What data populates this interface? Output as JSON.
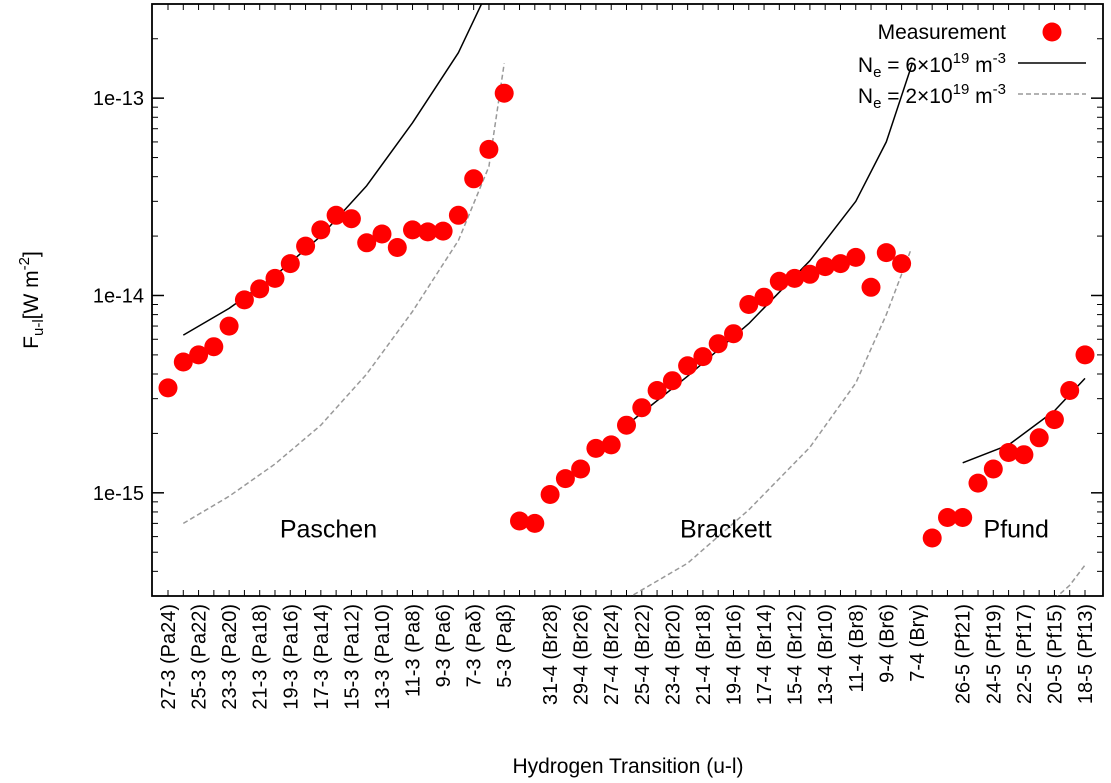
{
  "chart_data": {
    "type": "scatter",
    "xlabel": "Hydrogen Transition (u-l)",
    "ylabel": "F",
    "ylabel_sub": "u-l",
    "ylabel_unit": "[W m",
    "ylabel_unit_sup": "-2",
    "ylabel_unit_end": "]",
    "yscale": "log",
    "ylim": [
      3e-16,
      3e-13
    ],
    "yticks": [
      {
        "value": 1e-13,
        "label": "1e-13"
      },
      {
        "value": 1e-14,
        "label": "1e-14"
      },
      {
        "value": 1e-15,
        "label": "1e-15"
      }
    ],
    "categories": [
      "27-3 (Pa24)",
      "",
      "25-3 (Pa22)",
      "",
      "23-3 (Pa20)",
      "",
      "21-3 (Pa18)",
      "",
      "19-3 (Pa16)",
      "",
      "17-3 (Pa14)",
      "",
      "15-3 (Pa12)",
      "",
      "13-3 (Pa10)",
      "",
      "11-3 (Pa8)",
      "",
      "9-3 (Pa6)",
      "",
      "7-3 (Paδ)",
      "",
      "5-3 (Paβ)",
      "",
      "",
      "31-4 (Br28)",
      "",
      "29-4 (Br26)",
      "",
      "27-4 (Br24)",
      "",
      "25-4 (Br22)",
      "",
      "23-4 (Br20)",
      "",
      "21-4 (Br18)",
      "",
      "19-4 (Br16)",
      "",
      "17-4 (Br14)",
      "",
      "15-4 (Br12)",
      "",
      "13-4 (Br10)",
      "",
      "11-4 (Br8)",
      "",
      "9-4 (Br6)",
      "",
      "7-4 (Brγ)",
      "",
      "",
      "26-5 (Pf21)",
      "",
      "24-5 (Pf19)",
      "",
      "22-5 (Pf17)",
      "",
      "20-5 (Pf15)",
      "",
      "18-5 (Pf13)"
    ],
    "series": [
      {
        "name": "Measurement",
        "color": "#ff0000",
        "points": [
          [
            0,
            3.4e-15
          ],
          [
            1,
            4.6e-15
          ],
          [
            2,
            5e-15
          ],
          [
            3,
            5.5e-15
          ],
          [
            4,
            7e-15
          ],
          [
            5,
            9.5e-15
          ],
          [
            6,
            1.08e-14
          ],
          [
            7,
            1.22e-14
          ],
          [
            8,
            1.45e-14
          ],
          [
            9,
            1.78e-14
          ],
          [
            10,
            2.15e-14
          ],
          [
            11,
            2.55e-14
          ],
          [
            12,
            2.45e-14
          ],
          [
            13,
            1.85e-14
          ],
          [
            14,
            2.05e-14
          ],
          [
            15,
            1.75e-14
          ],
          [
            16,
            2.15e-14
          ],
          [
            17,
            2.1e-14
          ],
          [
            18,
            2.12e-14
          ],
          [
            19,
            2.55e-14
          ],
          [
            20,
            3.9e-14
          ],
          [
            21,
            5.5e-14
          ],
          [
            22,
            1.06e-13
          ],
          [
            23,
            7.2e-16
          ],
          [
            24,
            7e-16
          ],
          [
            25,
            9.8e-16
          ],
          [
            26,
            1.18e-15
          ],
          [
            27,
            1.32e-15
          ],
          [
            28,
            1.68e-15
          ],
          [
            29,
            1.75e-15
          ],
          [
            30,
            2.2e-15
          ],
          [
            31,
            2.7e-15
          ],
          [
            32,
            3.3e-15
          ],
          [
            33,
            3.7e-15
          ],
          [
            34,
            4.4e-15
          ],
          [
            35,
            4.9e-15
          ],
          [
            36,
            5.7e-15
          ],
          [
            37,
            6.4e-15
          ],
          [
            38,
            9e-15
          ],
          [
            39,
            9.8e-15
          ],
          [
            40,
            1.18e-14
          ],
          [
            41,
            1.22e-14
          ],
          [
            42,
            1.28e-14
          ],
          [
            43,
            1.4e-14
          ],
          [
            44,
            1.45e-14
          ],
          [
            45,
            1.56e-14
          ],
          [
            46,
            1.1e-14
          ],
          [
            47,
            1.65e-14
          ],
          [
            48,
            1.45e-14
          ],
          [
            50,
            5.9e-16
          ],
          [
            51,
            7.5e-16
          ],
          [
            52,
            7.5e-16
          ],
          [
            53,
            1.12e-15
          ],
          [
            54,
            1.32e-15
          ],
          [
            55,
            1.6e-15
          ],
          [
            56,
            1.56e-15
          ],
          [
            57,
            1.9e-15
          ],
          [
            58,
            2.35e-15
          ],
          [
            59,
            3.3e-15
          ],
          [
            60,
            5e-15
          ]
        ]
      },
      {
        "name": "N",
        "name_sub": "e",
        "name_mid": " = 6×10",
        "name_sup": "19",
        "name_end": " m",
        "name_sup2": "-3",
        "color": "#000000",
        "style": "solid",
        "curves": [
          [
            [
              1,
              6.3e-15
            ],
            [
              4,
              8.6e-15
            ],
            [
              7,
              1.26e-14
            ],
            [
              10,
              2e-14
            ],
            [
              13,
              3.6e-14
            ],
            [
              16,
              7.5e-14
            ],
            [
              19,
              1.7e-13
            ],
            [
              21,
              3.6e-13
            ]
          ],
          [
            [
              30,
              2.2e-15
            ],
            [
              34,
              3.9e-15
            ],
            [
              38,
              7.2e-15
            ],
            [
              42,
              1.5e-14
            ],
            [
              45,
              3e-14
            ],
            [
              47,
              6e-14
            ],
            [
              48.7,
              1.5e-13
            ]
          ],
          [
            [
              52,
              1.42e-15
            ],
            [
              55,
              1.75e-15
            ],
            [
              58,
              2.6e-15
            ],
            [
              60,
              3.8e-15
            ]
          ]
        ]
      },
      {
        "name": "N",
        "name_sub": "e",
        "name_mid": " = 2×10",
        "name_sup": "19",
        "name_end": " m",
        "name_sup2": "-3",
        "color": "#999999",
        "style": "dashed",
        "curves": [
          [
            [
              1,
              7e-16
            ],
            [
              4,
              9.6e-16
            ],
            [
              7,
              1.4e-15
            ],
            [
              10,
              2.2e-15
            ],
            [
              13,
              4e-15
            ],
            [
              16,
              8.3e-15
            ],
            [
              19,
              1.9e-14
            ],
            [
              21,
              4.5e-14
            ],
            [
              22,
              1.5e-13
            ]
          ],
          [
            [
              30,
              2.9e-16
            ],
            [
              34,
              4.4e-16
            ],
            [
              38,
              8.2e-16
            ],
            [
              42,
              1.7e-15
            ],
            [
              45,
              3.6e-15
            ],
            [
              47,
              8e-15
            ],
            [
              48.6,
              1.7e-14
            ]
          ],
          [
            [
              58,
              2.9e-16
            ],
            [
              59,
              3.4e-16
            ],
            [
              60,
              4.3e-16
            ]
          ]
        ]
      }
    ],
    "annotations": [
      {
        "text": "Paschen",
        "x": 10.5,
        "y": 6.5e-16
      },
      {
        "text": "Brackett",
        "x": 36.5,
        "y": 6.5e-16
      },
      {
        "text": "Pfund",
        "x": 55.5,
        "y": 6.5e-16
      }
    ],
    "legend": "top-right"
  }
}
